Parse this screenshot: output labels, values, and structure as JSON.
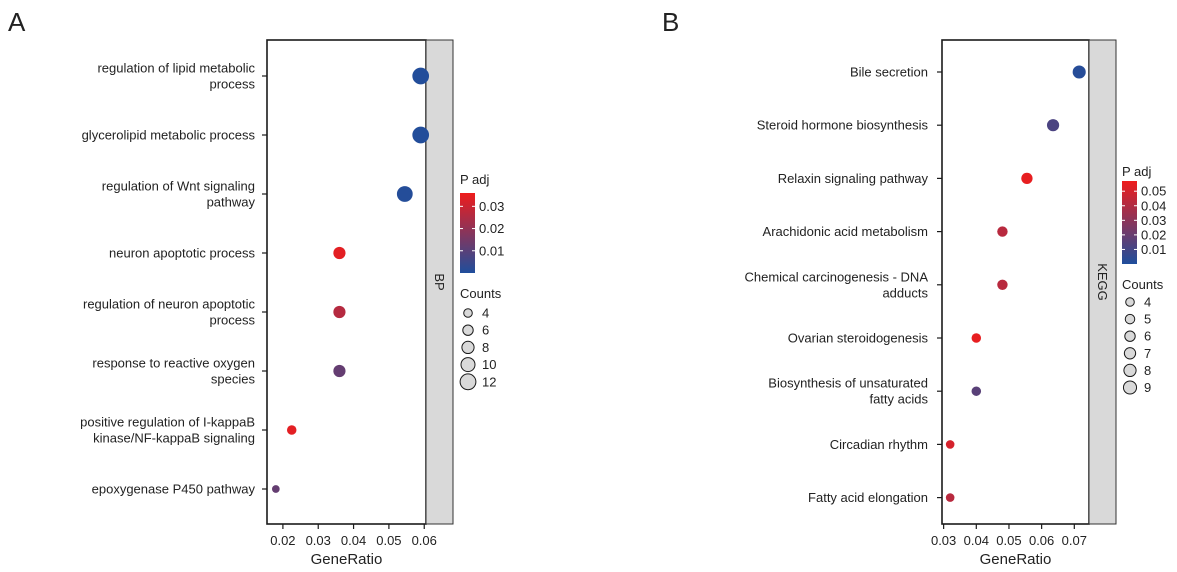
{
  "chart_data": [
    {
      "panel": "A",
      "type": "scatter",
      "strip_label": "BP",
      "xlabel": "GeneRatio",
      "xlim": [
        0.0155,
        0.0605
      ],
      "xticks": [
        0.02,
        0.03,
        0.04,
        0.05,
        0.06
      ],
      "xtick_labels": [
        "0.02",
        "0.03",
        "0.04",
        "0.05",
        "0.06"
      ],
      "categories": [
        [
          "regulation of lipid metabolic",
          "process"
        ],
        [
          "glycerolipid metabolic process"
        ],
        [
          "regulation of Wnt signaling",
          "pathway"
        ],
        [
          "neuron apoptotic process"
        ],
        [
          "regulation of neuron apoptotic",
          "process"
        ],
        [
          "response to reactive oxygen",
          "species"
        ],
        [
          "positive regulation of I-kappaB",
          "kinase/NF-kappaB signaling"
        ],
        [
          "epoxygenase P450 pathway"
        ]
      ],
      "points": [
        {
          "x": 0.059,
          "count": 13,
          "padj": 0.0005
        },
        {
          "x": 0.059,
          "count": 13,
          "padj": 0.0005
        },
        {
          "x": 0.0545,
          "count": 12,
          "padj": 0.0008
        },
        {
          "x": 0.036,
          "count": 8,
          "padj": 0.034
        },
        {
          "x": 0.036,
          "count": 8,
          "padj": 0.026
        },
        {
          "x": 0.036,
          "count": 8,
          "padj": 0.012
        },
        {
          "x": 0.0225,
          "count": 5,
          "padj": 0.034
        },
        {
          "x": 0.018,
          "count": 3,
          "padj": 0.012
        }
      ],
      "color_legend": {
        "title": "P adj",
        "range": [
          0,
          0.036
        ],
        "ticks": [
          0.01,
          0.02,
          0.03
        ],
        "tick_labels": [
          "0.01",
          "0.02",
          "0.03"
        ]
      },
      "size_legend": {
        "title": "Counts",
        "values": [
          4,
          6,
          8,
          10,
          12
        ],
        "labels": [
          "4",
          "6",
          "8",
          "10",
          "12"
        ]
      },
      "colors": {
        "low": "#1f4e9c",
        "high": "#ee1c1c"
      },
      "grid": false,
      "legend_placement": "right"
    },
    {
      "panel": "B",
      "type": "scatter",
      "strip_label": "KEGG",
      "xlabel": "GeneRatio",
      "xlim": [
        0.0295,
        0.0745
      ],
      "xticks": [
        0.03,
        0.04,
        0.05,
        0.06,
        0.07
      ],
      "xtick_labels": [
        "0.03",
        "0.04",
        "0.05",
        "0.06",
        "0.07"
      ],
      "categories": [
        [
          "Bile secretion"
        ],
        [
          "Steroid hormone biosynthesis"
        ],
        [
          "Relaxin signaling pathway"
        ],
        [
          "Arachidonic acid metabolism"
        ],
        [
          "Chemical carcinogenesis - DNA",
          "adducts"
        ],
        [
          "Ovarian steroidogenesis"
        ],
        [
          "Biosynthesis of unsaturated",
          "fatty acids"
        ],
        [
          "Circadian rhythm"
        ],
        [
          "Fatty acid elongation"
        ]
      ],
      "points": [
        {
          "x": 0.0715,
          "count": 9,
          "padj": 0.002
        },
        {
          "x": 0.0635,
          "count": 8,
          "padj": 0.012
        },
        {
          "x": 0.0555,
          "count": 7,
          "padj": 0.055
        },
        {
          "x": 0.048,
          "count": 6,
          "padj": 0.042
        },
        {
          "x": 0.048,
          "count": 6,
          "padj": 0.042
        },
        {
          "x": 0.04,
          "count": 5,
          "padj": 0.055
        },
        {
          "x": 0.04,
          "count": 5,
          "padj": 0.016
        },
        {
          "x": 0.032,
          "count": 4,
          "padj": 0.05
        },
        {
          "x": 0.032,
          "count": 4,
          "padj": 0.042
        }
      ],
      "color_legend": {
        "title": "P adj",
        "range": [
          0,
          0.057
        ],
        "ticks": [
          0.01,
          0.02,
          0.03,
          0.04,
          0.05
        ],
        "tick_labels": [
          "0.01",
          "0.02",
          "0.03",
          "0.04",
          "0.05"
        ]
      },
      "size_legend": {
        "title": "Counts",
        "values": [
          4,
          5,
          6,
          7,
          8,
          9
        ],
        "labels": [
          "4",
          "5",
          "6",
          "7",
          "8",
          "9"
        ]
      },
      "colors": {
        "low": "#1f4e9c",
        "high": "#ee1c1c"
      },
      "grid": false,
      "legend_placement": "right"
    }
  ]
}
